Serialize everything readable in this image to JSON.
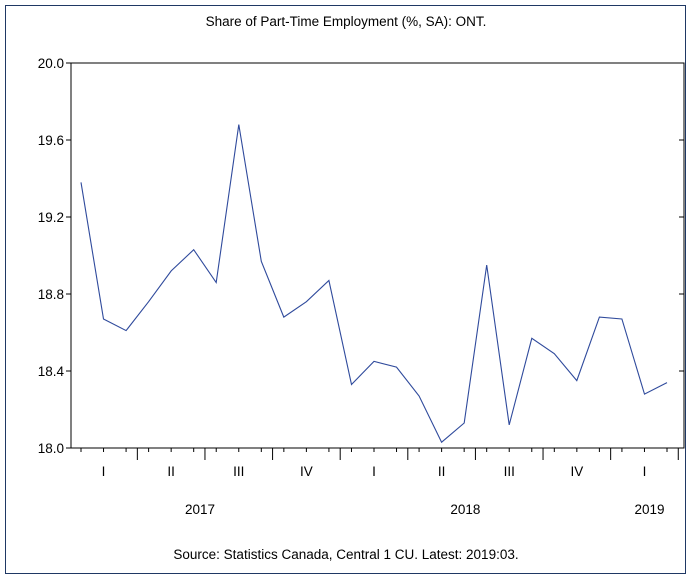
{
  "chart_data": {
    "type": "line",
    "title": "Share of Part-Time Employment (%, SA): ONT.",
    "source": "Source: Statistics Canada, Central 1 CU. Latest: 2019:03.",
    "xlabel": "",
    "ylabel": "",
    "ylim": [
      18.0,
      20.0
    ],
    "yticks": [
      "20.0",
      "19.6",
      "19.2",
      "18.8",
      "18.4",
      "18.0"
    ],
    "x": [
      "2017:01",
      "2017:02",
      "2017:03",
      "2017:04",
      "2017:05",
      "2017:06",
      "2017:07",
      "2017:08",
      "2017:09",
      "2017:10",
      "2017:11",
      "2017:12",
      "2018:01",
      "2018:02",
      "2018:03",
      "2018:04",
      "2018:05",
      "2018:06",
      "2018:07",
      "2018:08",
      "2018:09",
      "2018:10",
      "2018:11",
      "2018:12",
      "2019:01",
      "2019:02",
      "2019:03"
    ],
    "quarter_labels": [
      "I",
      "II",
      "III",
      "IV",
      "I",
      "II",
      "III",
      "IV",
      "I"
    ],
    "year_labels": [
      "2017",
      "2018",
      "2019"
    ],
    "series": [
      {
        "values": [
          19.38,
          18.67,
          18.61,
          18.76,
          18.92,
          19.03,
          18.86,
          19.68,
          18.97,
          18.68,
          18.76,
          18.87,
          18.33,
          18.45,
          18.42,
          18.27,
          18.03,
          18.13,
          18.95,
          18.12,
          18.57,
          18.49,
          18.35,
          18.68,
          18.67,
          18.28,
          18.34
        ],
        "color": "#2f4a9c"
      }
    ],
    "grid": false,
    "legend": "none"
  }
}
